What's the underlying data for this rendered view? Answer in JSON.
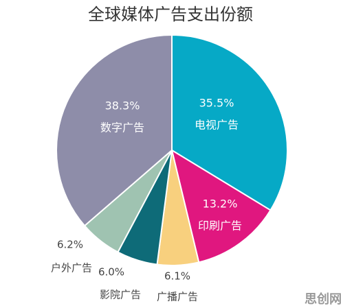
{
  "chart_data": {
    "type": "pie",
    "title": "全球媒体广告支出份额",
    "categories": [
      "电视广告",
      "印刷广告",
      "广播广告",
      "影院广告",
      "户外广告",
      "数字广告"
    ],
    "values": [
      35.5,
      13.2,
      6.1,
      6.0,
      6.2,
      38.3
    ],
    "value_labels": [
      "35.5%",
      "13.2%",
      "6.1%",
      "6.0%",
      "6.2%",
      "38.3%"
    ],
    "colors": [
      "#06a9c6",
      "#e0177f",
      "#f8d07e",
      "#0e6b78",
      "#9fc3b1",
      "#8e8da9"
    ]
  },
  "watermark": "思创网"
}
